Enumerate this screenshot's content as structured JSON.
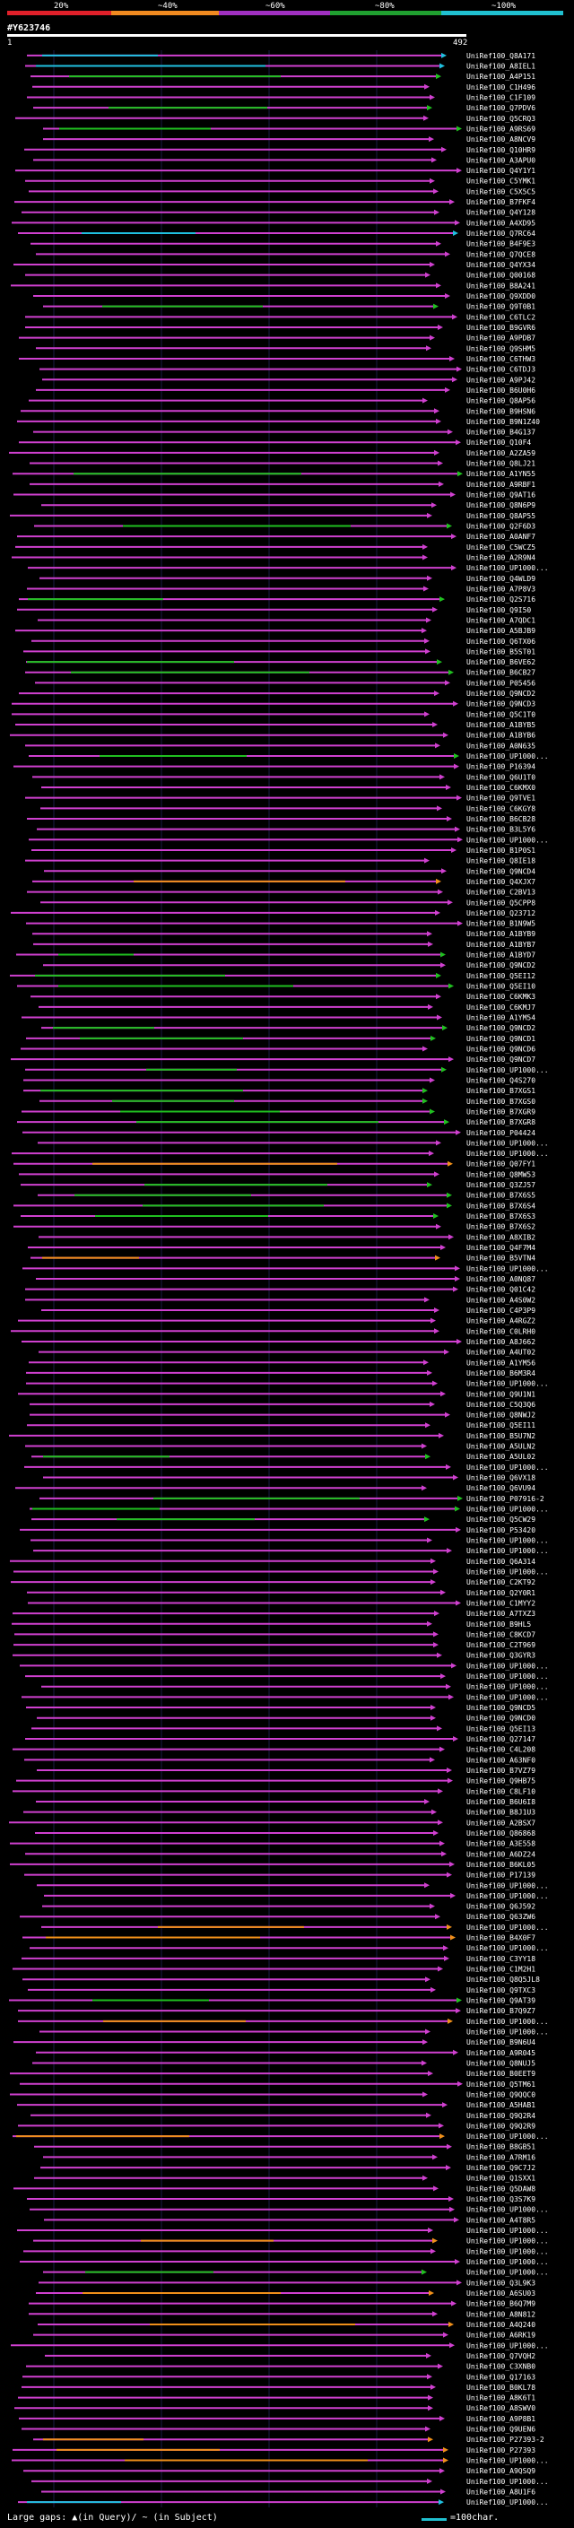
{
  "legend": {
    "labels": [
      "20%",
      "~40%",
      "~60%",
      "~80%",
      "~100%"
    ],
    "colors": [
      "#e0202a",
      "#f08a20",
      "#a030c0",
      "#20a030",
      "#20c0d0"
    ]
  },
  "query": {
    "id": "#Y623746",
    "start": "1",
    "end": "492"
  },
  "footer": {
    "note": "Large gaps: ▲(in Query)/ ~ (in Subject)",
    "scale": "=100char."
  },
  "hits_palette": {
    "magenta": "#d040d0",
    "green": "#20c020",
    "cyan": "#20c0e0",
    "orange": "#f0901a"
  },
  "hits": [
    {
      "label": "UniRef100_Q8A171",
      "color": "cyan"
    },
    {
      "label": "UniRef100_A8IEL1",
      "color": "cyan"
    },
    {
      "label": "UniRef100_A4P151",
      "color": "green"
    },
    {
      "label": "UniRef100_C1H496",
      "color": "magenta"
    },
    {
      "label": "UniRef100_C1F109",
      "color": "magenta"
    },
    {
      "label": "UniRef100_Q7PDV6",
      "color": "green"
    },
    {
      "label": "UniRef100_Q5CRQ3",
      "color": "magenta"
    },
    {
      "label": "UniRef100_A9RS69",
      "color": "green"
    },
    {
      "label": "UniRef100_A8NCV9",
      "color": "magenta"
    },
    {
      "label": "UniRef100_Q10HR9",
      "color": "magenta"
    },
    {
      "label": "UniRef100_A3APU0",
      "color": "magenta"
    },
    {
      "label": "UniRef100_Q4Y1Y1",
      "color": "magenta"
    },
    {
      "label": "UniRef100_C5YMK1",
      "color": "magenta"
    },
    {
      "label": "UniRef100_C5X5C5",
      "color": "magenta"
    },
    {
      "label": "UniRef100_B7FKF4",
      "color": "magenta"
    },
    {
      "label": "UniRef100_Q4Y128",
      "color": "magenta"
    },
    {
      "label": "UniRef100_A4XD95",
      "color": "magenta"
    },
    {
      "label": "UniRef100_Q7RC64",
      "color": "cyan"
    },
    {
      "label": "UniRef100_B4F9E3",
      "color": "magenta"
    },
    {
      "label": "UniRef100_Q7QCE8",
      "color": "magenta"
    },
    {
      "label": "UniRef100_Q4YX34",
      "color": "magenta"
    },
    {
      "label": "UniRef100_Q00168",
      "color": "magenta"
    },
    {
      "label": "UniRef100_B8A241",
      "color": "magenta"
    },
    {
      "label": "UniRef100_Q9XDD0",
      "color": "magenta"
    },
    {
      "label": "UniRef100_Q9T0B1",
      "color": "green"
    },
    {
      "label": "UniRef100_C6TLC2",
      "color": "magenta"
    },
    {
      "label": "UniRef100_B9GVR6",
      "color": "magenta"
    },
    {
      "label": "UniRef100_A9PDB7",
      "color": "magenta"
    },
    {
      "label": "UniRef100_Q9SHM5",
      "color": "magenta"
    },
    {
      "label": "UniRef100_C6THW3",
      "color": "magenta"
    },
    {
      "label": "UniRef100_C6TDJ3",
      "color": "magenta"
    },
    {
      "label": "UniRef100_A9PJ42",
      "color": "magenta"
    },
    {
      "label": "UniRef100_B6U0H6",
      "color": "magenta"
    },
    {
      "label": "UniRef100_Q8AP56",
      "color": "magenta"
    },
    {
      "label": "UniRef100_B9HSN6",
      "color": "magenta"
    },
    {
      "label": "UniRef100_B9N1Z40",
      "color": "magenta"
    },
    {
      "label": "UniRef100_B4G137",
      "color": "magenta"
    },
    {
      "label": "UniRef100_Q10F4",
      "color": "magenta"
    },
    {
      "label": "UniRef100_A2ZA59",
      "color": "magenta"
    },
    {
      "label": "UniRef100_Q8LJ21",
      "color": "magenta"
    },
    {
      "label": "UniRef100_A1YN55",
      "color": "green"
    },
    {
      "label": "UniRef100_A9RBF1",
      "color": "magenta"
    },
    {
      "label": "UniRef100_Q9AT16",
      "color": "magenta"
    },
    {
      "label": "UniRef100_Q8N6P9",
      "color": "magenta"
    },
    {
      "label": "UniRef100_Q8AP55",
      "color": "magenta"
    },
    {
      "label": "UniRef100_Q2F6D3",
      "color": "green"
    },
    {
      "label": "UniRef100_A0ANF7",
      "color": "magenta"
    },
    {
      "label": "UniRef100_C5WCZ5",
      "color": "magenta"
    },
    {
      "label": "UniRef100_A2R9N4",
      "color": "magenta"
    },
    {
      "label": "UniRef100_UP1000...",
      "color": "magenta"
    },
    {
      "label": "UniRef100_Q4WLD9",
      "color": "magenta"
    },
    {
      "label": "UniRef100_A7P8V3",
      "color": "magenta"
    },
    {
      "label": "UniRef100_Q2S716",
      "color": "green"
    },
    {
      "label": "UniRef100_Q9I50",
      "color": "magenta"
    },
    {
      "label": "UniRef100_A7QDC1",
      "color": "magenta"
    },
    {
      "label": "UniRef100_A5BJB9",
      "color": "magenta"
    },
    {
      "label": "UniRef100_Q6TX06",
      "color": "magenta"
    },
    {
      "label": "UniRef100_B5ST01",
      "color": "magenta"
    },
    {
      "label": "UniRef100_B6VE62",
      "color": "green"
    },
    {
      "label": "UniRef100_B6CB27",
      "color": "green"
    },
    {
      "label": "UniRef100_P05456",
      "color": "magenta"
    },
    {
      "label": "UniRef100_Q9NCD2",
      "color": "magenta"
    },
    {
      "label": "UniRef100_Q9NCD3",
      "color": "magenta"
    },
    {
      "label": "UniRef100_Q5C1T0",
      "color": "magenta"
    },
    {
      "label": "UniRef100_A1BYB5",
      "color": "magenta"
    },
    {
      "label": "UniRef100_A1BYB6",
      "color": "magenta"
    },
    {
      "label": "UniRef100_A0N635",
      "color": "magenta"
    },
    {
      "label": "UniRef100_UP1000...",
      "color": "green"
    },
    {
      "label": "UniRef100_P16394",
      "color": "magenta"
    },
    {
      "label": "UniRef100_Q6U1T0",
      "color": "magenta"
    },
    {
      "label": "UniRef100_C6KMX0",
      "color": "magenta"
    },
    {
      "label": "UniRef100_Q9TVE1",
      "color": "magenta"
    },
    {
      "label": "UniRef100_C6KGY8",
      "color": "magenta"
    },
    {
      "label": "UniRef100_B6CB28",
      "color": "magenta"
    },
    {
      "label": "UniRef100_B3L5Y6",
      "color": "magenta"
    },
    {
      "label": "UniRef100_UP1000...",
      "color": "magenta"
    },
    {
      "label": "UniRef100_B1P0S1",
      "color": "magenta"
    },
    {
      "label": "UniRef100_Q8IE18",
      "color": "magenta"
    },
    {
      "label": "UniRef100_Q9NCD4",
      "color": "magenta"
    },
    {
      "label": "UniRef100_Q4XJX7",
      "color": "orange"
    },
    {
      "label": "UniRef100_C2BV13",
      "color": "magenta"
    },
    {
      "label": "UniRef100_Q5CPP8",
      "color": "magenta"
    },
    {
      "label": "UniRef100_Q23712",
      "color": "magenta"
    },
    {
      "label": "UniRef100_B1N9W5",
      "color": "magenta"
    },
    {
      "label": "UniRef100_A1BYB9",
      "color": "magenta"
    },
    {
      "label": "UniRef100_A1BYB7",
      "color": "magenta"
    },
    {
      "label": "UniRef100_A1BYD7",
      "color": "green"
    },
    {
      "label": "UniRef100_Q9NCD2",
      "color": "magenta"
    },
    {
      "label": "UniRef100_Q5EI12",
      "color": "green"
    },
    {
      "label": "UniRef100_Q5EI10",
      "color": "green"
    },
    {
      "label": "UniRef100_C6KMK3",
      "color": "magenta"
    },
    {
      "label": "UniRef100_C6KMJ7",
      "color": "magenta"
    },
    {
      "label": "UniRef100_A1YM54",
      "color": "magenta"
    },
    {
      "label": "UniRef100_Q9NCD2",
      "color": "green"
    },
    {
      "label": "UniRef100_Q9NCD1",
      "color": "green"
    },
    {
      "label": "UniRef100_Q9NCD6",
      "color": "magenta"
    },
    {
      "label": "UniRef100_Q9NCD7",
      "color": "magenta"
    },
    {
      "label": "UniRef100_UP1000...",
      "color": "green"
    },
    {
      "label": "UniRef100_Q4S270",
      "color": "magenta"
    },
    {
      "label": "UniRef100_B7XGS1",
      "color": "green"
    },
    {
      "label": "UniRef100_B7XGS0",
      "color": "green"
    },
    {
      "label": "UniRef100_B7XGR9",
      "color": "green"
    },
    {
      "label": "UniRef100_B7XGR8",
      "color": "green"
    },
    {
      "label": "UniRef100_P04424",
      "color": "magenta"
    },
    {
      "label": "UniRef100_UP1000...",
      "color": "magenta"
    },
    {
      "label": "UniRef100_UP1000...",
      "color": "magenta"
    },
    {
      "label": "UniRef100_Q07FY1",
      "color": "orange"
    },
    {
      "label": "UniRef100_Q8MW53",
      "color": "magenta"
    },
    {
      "label": "UniRef100_Q3ZJ57",
      "color": "green"
    },
    {
      "label": "UniRef100_B7X6S5",
      "color": "green"
    },
    {
      "label": "UniRef100_B7X6S4",
      "color": "green"
    },
    {
      "label": "UniRef100_B7X6S3",
      "color": "green"
    },
    {
      "label": "UniRef100_B7X6S2",
      "color": "magenta"
    },
    {
      "label": "UniRef100_A8XIB2",
      "color": "magenta"
    },
    {
      "label": "UniRef100_Q4F7M4",
      "color": "magenta"
    },
    {
      "label": "UniRef100_B5VTN4",
      "color": "orange"
    },
    {
      "label": "UniRef100_UP1000...",
      "color": "magenta"
    },
    {
      "label": "UniRef100_A0NQ87",
      "color": "magenta"
    },
    {
      "label": "UniRef100_Q01C42",
      "color": "magenta"
    },
    {
      "label": "UniRef100_A4S0W2",
      "color": "magenta"
    },
    {
      "label": "UniRef100_C4P3P9",
      "color": "magenta"
    },
    {
      "label": "UniRef100_A4RGZ2",
      "color": "magenta"
    },
    {
      "label": "UniRef100_C0LRH0",
      "color": "magenta"
    },
    {
      "label": "UniRef100_A8J662",
      "color": "magenta"
    },
    {
      "label": "UniRef100_A4UT02",
      "color": "magenta"
    },
    {
      "label": "UniRef100_A1YM56",
      "color": "magenta"
    },
    {
      "label": "UniRef100_B6M3R4",
      "color": "magenta"
    },
    {
      "label": "UniRef100_UP1000...",
      "color": "magenta"
    },
    {
      "label": "UniRef100_Q9U1N1",
      "color": "magenta"
    },
    {
      "label": "UniRef100_C5Q3Q6",
      "color": "magenta"
    },
    {
      "label": "UniRef100_Q8NWJ2",
      "color": "magenta"
    },
    {
      "label": "UniRef100_Q5EI11",
      "color": "magenta"
    },
    {
      "label": "UniRef100_B5U7N2",
      "color": "magenta"
    },
    {
      "label": "UniRef100_A5ULN2",
      "color": "magenta"
    },
    {
      "label": "UniRef100_A5UL02",
      "color": "green"
    },
    {
      "label": "UniRef100_UP1000...",
      "color": "magenta"
    },
    {
      "label": "UniRef100_Q6VX18",
      "color": "magenta"
    },
    {
      "label": "UniRef100_Q6VU94",
      "color": "magenta"
    },
    {
      "label": "UniRef100_P07916-2",
      "color": "green"
    },
    {
      "label": "UniRef100_UP1000...",
      "color": "green"
    },
    {
      "label": "UniRef100_Q5CW29",
      "color": "green"
    },
    {
      "label": "UniRef100_P53420",
      "color": "magenta"
    },
    {
      "label": "UniRef100_UP1000...",
      "color": "magenta"
    },
    {
      "label": "UniRef100_UP1000...",
      "color": "magenta"
    },
    {
      "label": "UniRef100_Q6A314",
      "color": "magenta"
    },
    {
      "label": "UniRef100_UP1000...",
      "color": "magenta"
    },
    {
      "label": "UniRef100_C2KT92",
      "color": "magenta"
    },
    {
      "label": "UniRef100_Q2Y0R1",
      "color": "magenta"
    },
    {
      "label": "UniRef100_C1MYY2",
      "color": "magenta"
    },
    {
      "label": "UniRef100_A7TXZ3",
      "color": "magenta"
    },
    {
      "label": "UniRef100_B9HL5",
      "color": "magenta"
    },
    {
      "label": "UniRef100_C8KCD7",
      "color": "magenta"
    },
    {
      "label": "UniRef100_C2T969",
      "color": "magenta"
    },
    {
      "label": "UniRef100_Q3GYR3",
      "color": "magenta"
    },
    {
      "label": "UniRef100_UP1000...",
      "color": "magenta"
    },
    {
      "label": "UniRef100_UP1000...",
      "color": "magenta"
    },
    {
      "label": "UniRef100_UP1000...",
      "color": "magenta"
    },
    {
      "label": "UniRef100_UP1000...",
      "color": "magenta"
    },
    {
      "label": "UniRef100_Q9NCD5",
      "color": "magenta"
    },
    {
      "label": "UniRef100_Q9NCD0",
      "color": "magenta"
    },
    {
      "label": "UniRef100_Q5EI13",
      "color": "magenta"
    },
    {
      "label": "UniRef100_Q27147",
      "color": "magenta"
    },
    {
      "label": "UniRef100_C4L208",
      "color": "magenta"
    },
    {
      "label": "UniRef100_A63NF0",
      "color": "magenta"
    },
    {
      "label": "UniRef100_B7VZ79",
      "color": "magenta"
    },
    {
      "label": "UniRef100_Q9HB75",
      "color": "magenta"
    },
    {
      "label": "UniRef100_C8LF10",
      "color": "magenta"
    },
    {
      "label": "UniRef100_B6U6I8",
      "color": "magenta"
    },
    {
      "label": "UniRef100_B8J1U3",
      "color": "magenta"
    },
    {
      "label": "UniRef100_A2BSX7",
      "color": "magenta"
    },
    {
      "label": "UniRef100_Q86868",
      "color": "magenta"
    },
    {
      "label": "UniRef100_A3E558",
      "color": "magenta"
    },
    {
      "label": "UniRef100_A6DZ24",
      "color": "magenta"
    },
    {
      "label": "UniRef100_B6KL05",
      "color": "magenta"
    },
    {
      "label": "UniRef100_P17139",
      "color": "magenta"
    },
    {
      "label": "UniRef100_UP1000...",
      "color": "magenta"
    },
    {
      "label": "UniRef100_UP1000...",
      "color": "magenta"
    },
    {
      "label": "UniRef100_Q6J592",
      "color": "magenta"
    },
    {
      "label": "UniRef100_Q63ZW6",
      "color": "magenta"
    },
    {
      "label": "UniRef100_UP1000...",
      "color": "orange"
    },
    {
      "label": "UniRef100_B4X0F7",
      "color": "orange"
    },
    {
      "label": "UniRef100_UP1000...",
      "color": "magenta"
    },
    {
      "label": "UniRef100_C3YY18",
      "color": "magenta"
    },
    {
      "label": "UniRef100_C1M2H1",
      "color": "magenta"
    },
    {
      "label": "UniRef100_Q8Q5JL8",
      "color": "magenta"
    },
    {
      "label": "UniRef100_Q9TXC3",
      "color": "magenta"
    },
    {
      "label": "UniRef100_Q9AT39",
      "color": "green"
    },
    {
      "label": "UniRef100_B7Q9Z7",
      "color": "magenta"
    },
    {
      "label": "UniRef100_UP1000...",
      "color": "orange"
    },
    {
      "label": "UniRef100_UP1000...",
      "color": "magenta"
    },
    {
      "label": "UniRef100_B9N6U4",
      "color": "magenta"
    },
    {
      "label": "UniRef100_A9R045",
      "color": "magenta"
    },
    {
      "label": "UniRef100_Q8NUJ5",
      "color": "magenta"
    },
    {
      "label": "UniRef100_B0EET9",
      "color": "magenta"
    },
    {
      "label": "UniRef100_Q5TM61",
      "color": "magenta"
    },
    {
      "label": "UniRef100_Q9QQC0",
      "color": "magenta"
    },
    {
      "label": "UniRef100_A5HAB1",
      "color": "magenta"
    },
    {
      "label": "UniRef100_Q9Q2R4",
      "color": "magenta"
    },
    {
      "label": "UniRef100_Q9Q2R9",
      "color": "magenta"
    },
    {
      "label": "UniRef100_UP1000...",
      "color": "orange"
    },
    {
      "label": "UniRef100_B8GB51",
      "color": "magenta"
    },
    {
      "label": "UniRef100_A7RM16",
      "color": "magenta"
    },
    {
      "label": "UniRef100_Q9C7J2",
      "color": "magenta"
    },
    {
      "label": "UniRef100_Q1SXX1",
      "color": "magenta"
    },
    {
      "label": "UniRef100_Q5DAW8",
      "color": "magenta"
    },
    {
      "label": "UniRef100_Q3S7K9",
      "color": "magenta"
    },
    {
      "label": "UniRef100_UP1000...",
      "color": "magenta"
    },
    {
      "label": "UniRef100_A4T8R5",
      "color": "magenta"
    },
    {
      "label": "UniRef100_UP1000...",
      "color": "magenta"
    },
    {
      "label": "UniRef100_UP1000...",
      "color": "orange"
    },
    {
      "label": "UniRef100_UP1000...",
      "color": "magenta"
    },
    {
      "label": "UniRef100_UP1000...",
      "color": "magenta"
    },
    {
      "label": "UniRef100_UP1000...",
      "color": "green"
    },
    {
      "label": "UniRef100_Q3L9K3",
      "color": "magenta"
    },
    {
      "label": "UniRef100_A6SU03",
      "color": "orange"
    },
    {
      "label": "UniRef100_B6Q7M9",
      "color": "magenta"
    },
    {
      "label": "UniRef100_A8N812",
      "color": "magenta"
    },
    {
      "label": "UniRef100_A4Q240",
      "color": "orange"
    },
    {
      "label": "UniRef100_A6RK19",
      "color": "magenta"
    },
    {
      "label": "UniRef100_UP1000...",
      "color": "magenta"
    },
    {
      "label": "UniRef100_Q7VQH2",
      "color": "magenta"
    },
    {
      "label": "UniRef100_C3XNB0",
      "color": "magenta"
    },
    {
      "label": "UniRef100_Q17163",
      "color": "magenta"
    },
    {
      "label": "UniRef100_B0KL78",
      "color": "magenta"
    },
    {
      "label": "UniRef100_A8K6T1",
      "color": "magenta"
    },
    {
      "label": "UniRef100_A8SWV0",
      "color": "magenta"
    },
    {
      "label": "UniRef100_A9P8B1",
      "color": "magenta"
    },
    {
      "label": "UniRef100_Q9UEN6",
      "color": "magenta"
    },
    {
      "label": "UniRef100_P27393-2",
      "color": "orange"
    },
    {
      "label": "UniRef100_P27393",
      "color": "orange"
    },
    {
      "label": "UniRef100_UP1000...",
      "color": "orange"
    },
    {
      "label": "UniRef100_A9QSQ9",
      "color": "magenta"
    },
    {
      "label": "UniRef100_UP1000...",
      "color": "magenta"
    },
    {
      "label": "UniRef100_A8U1F6",
      "color": "magenta"
    },
    {
      "label": "UniRef100_UP1000...",
      "color": "cyan"
    }
  ]
}
